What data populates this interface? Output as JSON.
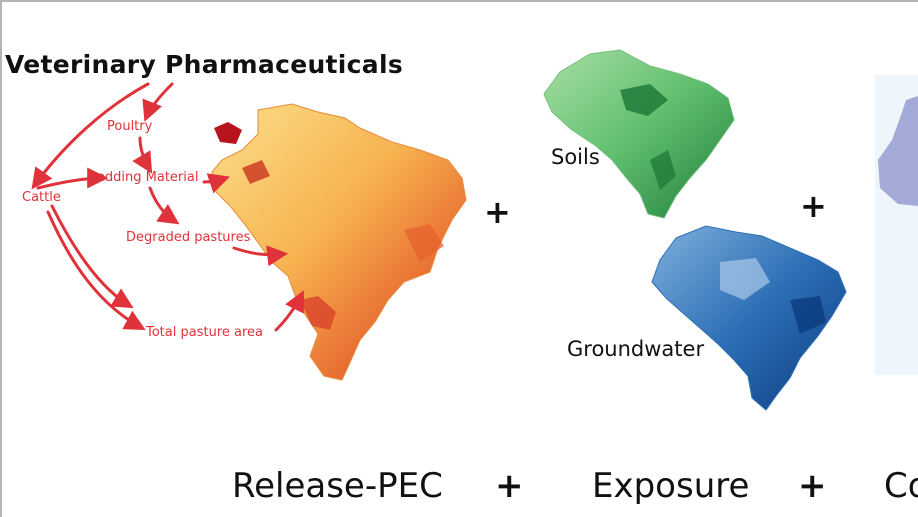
{
  "title": "Veterinary Pharmaceuticals",
  "flow": {
    "cattle": "Cattle",
    "poultry": "Poultry",
    "bedding": "Bedding Material",
    "degraded": "Degraded pastures",
    "total": "Total pasture area"
  },
  "maps": {
    "soils": "Soils",
    "groundwater": "Groundwater"
  },
  "plus_symbol": "+",
  "bottom": {
    "release": "Release-PEC",
    "exposure": "Exposure",
    "third": "Co"
  },
  "colors": {
    "flow_red": "#e0323a",
    "release_map": "#f6a04d",
    "soils_map": "#5fbf6e",
    "groundwater_map": "#1c5ea8",
    "panel": "#eef6fb"
  }
}
